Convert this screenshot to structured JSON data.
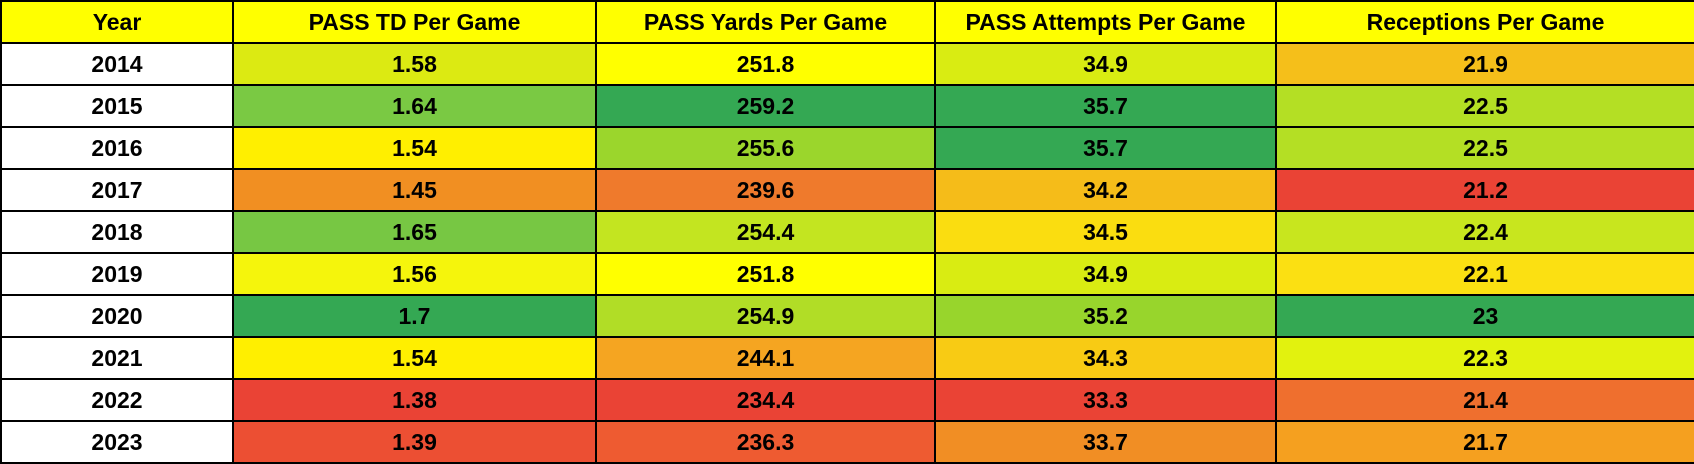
{
  "chart_data": {
    "type": "table",
    "columns": [
      "Year",
      "PASS TD Per Game",
      "PASS Yards Per Game",
      "PASS Attempts Per Game",
      "Receptions Per Game"
    ],
    "rows": [
      {
        "year": "2014",
        "cells": [
          {
            "v": "1.58",
            "c": "#dcea12"
          },
          {
            "v": "251.8",
            "c": "#ffff00"
          },
          {
            "v": "34.9",
            "c": "#d9ec12"
          },
          {
            "v": "21.9",
            "c": "#f5bf1a"
          }
        ]
      },
      {
        "year": "2015",
        "cells": [
          {
            "v": "1.64",
            "c": "#7ac943"
          },
          {
            "v": "259.2",
            "c": "#34a853"
          },
          {
            "v": "35.7",
            "c": "#34a853"
          },
          {
            "v": "22.5",
            "c": "#b4df24"
          }
        ]
      },
      {
        "year": "2016",
        "cells": [
          {
            "v": "1.54",
            "c": "#ffef00"
          },
          {
            "v": "255.6",
            "c": "#9bd62c"
          },
          {
            "v": "35.7",
            "c": "#34a853"
          },
          {
            "v": "22.5",
            "c": "#b4df24"
          }
        ]
      },
      {
        "year": "2017",
        "cells": [
          {
            "v": "1.45",
            "c": "#f18f22"
          },
          {
            "v": "239.6",
            "c": "#ef7a2c"
          },
          {
            "v": "34.2",
            "c": "#f5bc19"
          },
          {
            "v": "21.2",
            "c": "#ea4335"
          }
        ]
      },
      {
        "year": "2018",
        "cells": [
          {
            "v": "1.65",
            "c": "#77c743"
          },
          {
            "v": "254.4",
            "c": "#c3e520"
          },
          {
            "v": "34.5",
            "c": "#fadd10"
          },
          {
            "v": "22.4",
            "c": "#c8e61e"
          }
        ]
      },
      {
        "year": "2019",
        "cells": [
          {
            "v": "1.56",
            "c": "#f5f50c"
          },
          {
            "v": "251.8",
            "c": "#ffff00"
          },
          {
            "v": "34.9",
            "c": "#d9ec12"
          },
          {
            "v": "22.1",
            "c": "#fbe012"
          }
        ]
      },
      {
        "year": "2020",
        "cells": [
          {
            "v": "1.7",
            "c": "#34a853"
          },
          {
            "v": "254.9",
            "c": "#b1dd26"
          },
          {
            "v": "35.2",
            "c": "#98d52c"
          },
          {
            "v": "23",
            "c": "#34a853"
          }
        ]
      },
      {
        "year": "2021",
        "cells": [
          {
            "v": "1.54",
            "c": "#ffef00"
          },
          {
            "v": "244.1",
            "c": "#f5a521"
          },
          {
            "v": "34.3",
            "c": "#f8cb14"
          },
          {
            "v": "22.3",
            "c": "#e2f20e"
          }
        ]
      },
      {
        "year": "2022",
        "cells": [
          {
            "v": "1.38",
            "c": "#ea4335"
          },
          {
            "v": "234.4",
            "c": "#ea4335"
          },
          {
            "v": "33.3",
            "c": "#ea4335"
          },
          {
            "v": "21.4",
            "c": "#ef6f2e"
          }
        ]
      },
      {
        "year": "2023",
        "cells": [
          {
            "v": "1.39",
            "c": "#ec4f33"
          },
          {
            "v": "236.3",
            "c": "#ee5b31"
          },
          {
            "v": "33.7",
            "c": "#f18e24"
          },
          {
            "v": "21.7",
            "c": "#f5a01f"
          }
        ]
      }
    ]
  }
}
